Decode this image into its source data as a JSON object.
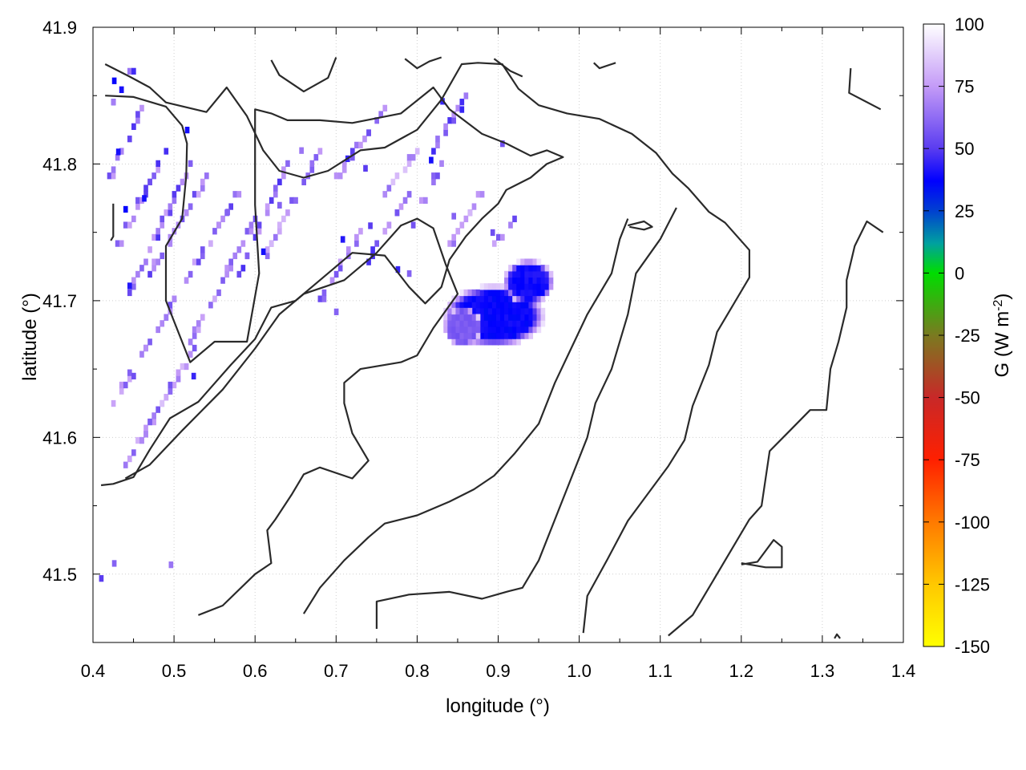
{
  "chart_data": {
    "type": "heatmap",
    "xlabel": "longitude (°)",
    "ylabel": "latitude (°)",
    "colorbar_label": "G (W m",
    "colorbar_label_sup": "-2",
    "colorbar_label_end": ")",
    "xlim": [
      0.4,
      1.4
    ],
    "ylim": [
      41.45,
      41.9
    ],
    "x_ticks": [
      0.4,
      0.5,
      0.6,
      0.7,
      0.8,
      0.9,
      1.0,
      1.1,
      1.2,
      1.3,
      1.4
    ],
    "x_tick_labels": [
      "0.4",
      "0.5",
      "0.6",
      "0.7",
      "0.8",
      "0.9",
      "1.0",
      "1.1",
      "1.2",
      "1.3",
      "1.4"
    ],
    "y_ticks": [
      41.5,
      41.6,
      41.7,
      41.8,
      41.9
    ],
    "y_tick_labels": [
      "41.5",
      "41.6",
      "41.7",
      "41.8",
      "41.9"
    ],
    "colorbar_range": [
      -150,
      100
    ],
    "colorbar_ticks": [
      100,
      75,
      50,
      25,
      0,
      -25,
      -50,
      -75,
      -100,
      -125,
      -150
    ],
    "colorbar_tick_labels": [
      "100",
      "75",
      "50",
      "25",
      "0",
      "-25",
      "-50",
      "-75",
      "-100",
      "-125",
      "-150"
    ],
    "colormap": [
      {
        "value": 100,
        "color": "#ffffff"
      },
      {
        "value": 75,
        "color": "#c49bf7"
      },
      {
        "value": 50,
        "color": "#5a3cf0"
      },
      {
        "value": 37,
        "color": "#0000ff"
      },
      {
        "value": 25,
        "color": "#0040d0"
      },
      {
        "value": 12,
        "color": "#00a0a0"
      },
      {
        "value": 0,
        "color": "#00dd00"
      },
      {
        "value": -25,
        "color": "#7a7a20"
      },
      {
        "value": -50,
        "color": "#c82828"
      },
      {
        "value": -75,
        "color": "#ff2000"
      },
      {
        "value": -100,
        "color": "#ff7a00"
      },
      {
        "value": -125,
        "color": "#ffc800"
      },
      {
        "value": -150,
        "color": "#ffff00"
      }
    ],
    "grid": true,
    "contour_color": "#2a2a2a",
    "blobs": [
      {
        "lon": 0.895,
        "lat": 41.69,
        "rlon": 0.05,
        "rlat": 0.018,
        "g": 35
      },
      {
        "lon": 0.935,
        "lat": 41.715,
        "rlon": 0.025,
        "rlat": 0.013,
        "g": 37
      },
      {
        "lon": 0.855,
        "lat": 41.683,
        "rlon": 0.02,
        "rlat": 0.012,
        "g": 55
      }
    ],
    "cells": [
      [
        0.426,
        41.861,
        38
      ],
      [
        0.431,
        41.809,
        40
      ],
      [
        0.44,
        41.767,
        38
      ],
      [
        0.445,
        41.711,
        42
      ],
      [
        0.516,
        41.825,
        40
      ],
      [
        0.463,
        41.775,
        40
      ],
      [
        0.45,
        41.645,
        55
      ],
      [
        0.524,
        41.645,
        45
      ],
      [
        0.61,
        41.736,
        40
      ],
      [
        0.708,
        41.745,
        42
      ],
      [
        0.714,
        41.804,
        45
      ],
      [
        0.736,
        41.797,
        50
      ],
      [
        0.742,
        41.755,
        50
      ],
      [
        0.776,
        41.723,
        45
      ],
      [
        0.831,
        41.846,
        45
      ],
      [
        0.817,
        41.803,
        40
      ],
      [
        0.855,
        41.84,
        45
      ],
      [
        0.893,
        41.75,
        55
      ],
      [
        0.845,
        41.762,
        60
      ],
      [
        0.7,
        41.692,
        60
      ],
      [
        0.41,
        41.497,
        50
      ],
      [
        0.426,
        41.508,
        60
      ],
      [
        0.496,
        41.507,
        65
      ],
      [
        0.566,
        41.765,
        60
      ],
      [
        0.63,
        41.77,
        60
      ],
      [
        0.79,
        41.72,
        60
      ],
      [
        0.657,
        41.81,
        65
      ],
      [
        0.905,
        41.815,
        55
      ]
    ],
    "stripes": [
      {
        "x1": 0.42,
        "y1": 41.79,
        "x2": 0.46,
        "y2": 41.84,
        "g": 60
      },
      {
        "x1": 0.43,
        "y1": 41.74,
        "x2": 0.49,
        "y2": 41.81,
        "g": 62
      },
      {
        "x1": 0.44,
        "y1": 41.7,
        "x2": 0.52,
        "y2": 41.8,
        "g": 62
      },
      {
        "x1": 0.47,
        "y1": 41.72,
        "x2": 0.54,
        "y2": 41.79,
        "g": 65
      },
      {
        "x1": 0.49,
        "y1": 41.69,
        "x2": 0.58,
        "y2": 41.78,
        "g": 65
      },
      {
        "x1": 0.52,
        "y1": 41.67,
        "x2": 0.6,
        "y2": 41.76,
        "g": 65
      },
      {
        "x1": 0.42,
        "y1": 41.62,
        "x2": 0.5,
        "y2": 41.7,
        "g": 68
      },
      {
        "x1": 0.44,
        "y1": 41.58,
        "x2": 0.52,
        "y2": 41.66,
        "g": 68
      },
      {
        "x1": 0.46,
        "y1": 41.6,
        "x2": 0.54,
        "y2": 41.68,
        "g": 70
      },
      {
        "x1": 0.42,
        "y1": 41.84,
        "x2": 0.45,
        "y2": 41.87,
        "g": 55
      },
      {
        "x1": 0.58,
        "y1": 41.72,
        "x2": 0.64,
        "y2": 41.8,
        "g": 62
      },
      {
        "x1": 0.61,
        "y1": 41.73,
        "x2": 0.68,
        "y2": 41.81,
        "g": 68
      },
      {
        "x1": 0.7,
        "y1": 41.79,
        "x2": 0.76,
        "y2": 41.84,
        "g": 65
      },
      {
        "x1": 0.74,
        "y1": 41.73,
        "x2": 0.79,
        "y2": 41.78,
        "g": 62
      },
      {
        "x1": 0.68,
        "y1": 41.7,
        "x2": 0.73,
        "y2": 41.75,
        "g": 68
      },
      {
        "x1": 0.79,
        "y1": 41.75,
        "x2": 0.83,
        "y2": 41.8,
        "g": 62
      },
      {
        "x1": 0.82,
        "y1": 41.81,
        "x2": 0.86,
        "y2": 41.85,
        "g": 58
      },
      {
        "x1": 0.84,
        "y1": 41.74,
        "x2": 0.88,
        "y2": 41.78,
        "g": 70
      },
      {
        "x1": 0.89,
        "y1": 41.74,
        "x2": 0.92,
        "y2": 41.76,
        "g": 65
      },
      {
        "x1": 0.76,
        "y1": 41.78,
        "x2": 0.8,
        "y2": 41.81,
        "g": 72
      }
    ],
    "contours": [
      [
        [
          0.415,
          41.873
        ],
        [
          0.445,
          41.864
        ],
        [
          0.47,
          41.856
        ],
        [
          0.49,
          41.845
        ],
        [
          0.54,
          41.838
        ],
        [
          0.565,
          41.856
        ],
        [
          0.59,
          41.835
        ],
        [
          0.61,
          41.81
        ],
        [
          0.63,
          41.795
        ],
        [
          0.66,
          41.79
        ],
        [
          0.69,
          41.795
        ],
        [
          0.73,
          41.81
        ],
        [
          0.76,
          41.812
        ],
        [
          0.8,
          41.825
        ],
        [
          0.83,
          41.847
        ],
        [
          0.855,
          41.873
        ],
        [
          0.875,
          41.874
        ],
        [
          0.905,
          41.873
        ],
        [
          0.925,
          41.855
        ],
        [
          0.95,
          41.843
        ],
        [
          0.985,
          41.837
        ],
        [
          1.025,
          41.833
        ],
        [
          1.065,
          41.822
        ],
        [
          1.095,
          41.808
        ],
        [
          1.115,
          41.793
        ],
        [
          1.135,
          41.782
        ],
        [
          1.16,
          41.765
        ],
        [
          1.18,
          41.757
        ],
        [
          1.21,
          41.737
        ],
        [
          1.21,
          41.717
        ],
        [
          1.19,
          41.697
        ],
        [
          1.17,
          41.677
        ],
        [
          1.16,
          41.653
        ],
        [
          1.14,
          41.623
        ],
        [
          1.13,
          41.598
        ],
        [
          1.11,
          41.579
        ],
        [
          1.08,
          41.555
        ],
        [
          1.06,
          41.539
        ],
        [
          1.035,
          41.511
        ],
        [
          1.01,
          41.484
        ],
        [
          1.005,
          41.457
        ]
      ],
      [
        [
          0.415,
          41.85
        ],
        [
          0.45,
          41.849
        ],
        [
          0.49,
          41.842
        ],
        [
          0.51,
          41.828
        ],
        [
          0.516,
          41.815
        ],
        [
          0.515,
          41.791
        ],
        [
          0.51,
          41.76
        ],
        [
          0.49,
          41.74
        ],
        [
          0.49,
          41.7
        ],
        [
          0.5,
          41.685
        ],
        [
          0.52,
          41.655
        ],
        [
          0.55,
          41.67
        ],
        [
          0.59,
          41.67
        ],
        [
          0.605,
          41.72
        ],
        [
          0.6,
          41.77
        ],
        [
          0.6,
          41.82
        ],
        [
          0.6,
          41.84
        ],
        [
          0.62,
          41.837
        ],
        [
          0.64,
          41.832
        ],
        [
          0.68,
          41.832
        ],
        [
          0.72,
          41.83
        ],
        [
          0.78,
          41.837
        ],
        [
          0.82,
          41.856
        ],
        [
          0.84,
          41.84
        ],
        [
          0.88,
          41.822
        ],
        [
          0.91,
          41.815
        ],
        [
          0.94,
          41.806
        ],
        [
          0.96,
          41.81
        ],
        [
          0.98,
          41.805
        ],
        [
          0.96,
          41.8
        ],
        [
          0.94,
          41.79
        ],
        [
          0.91,
          41.781
        ],
        [
          0.9,
          41.771
        ],
        [
          0.88,
          41.76
        ],
        [
          0.86,
          41.747
        ],
        [
          0.84,
          41.73
        ],
        [
          0.83,
          41.71
        ],
        [
          0.81,
          41.698
        ],
        [
          0.79,
          41.71
        ],
        [
          0.76,
          41.733
        ],
        [
          0.72,
          41.735
        ],
        [
          0.68,
          41.715
        ],
        [
          0.65,
          41.7
        ],
        [
          0.62,
          41.695
        ],
        [
          0.6,
          41.672
        ],
        [
          0.57,
          41.653
        ],
        [
          0.53,
          41.626
        ],
        [
          0.495,
          41.614
        ],
        [
          0.47,
          41.591
        ],
        [
          0.45,
          41.571
        ],
        [
          0.425,
          41.566
        ],
        [
          0.41,
          41.565
        ]
      ],
      [
        [
          0.425,
          41.771
        ],
        [
          0.425,
          41.747
        ],
        [
          0.422,
          41.744
        ]
      ],
      [
        [
          0.62,
          41.876
        ],
        [
          0.63,
          41.865
        ],
        [
          0.66,
          41.853
        ],
        [
          0.69,
          41.863
        ],
        [
          0.7,
          41.878
        ]
      ],
      [
        [
          0.785,
          41.877
        ],
        [
          0.8,
          41.87
        ],
        [
          0.815,
          41.875
        ],
        [
          0.83,
          41.878
        ]
      ],
      [
        [
          0.895,
          41.877
        ],
        [
          0.915,
          41.868
        ],
        [
          0.93,
          41.864
        ]
      ],
      [
        [
          1.018,
          41.874
        ],
        [
          1.025,
          41.87
        ],
        [
          1.045,
          41.874
        ]
      ],
      [
        [
          1.335,
          41.87
        ],
        [
          1.333,
          41.852
        ],
        [
          1.372,
          41.84
        ]
      ],
      [
        [
          1.062,
          41.754
        ],
        [
          1.08,
          41.752
        ],
        [
          1.09,
          41.754
        ],
        [
          1.08,
          41.758
        ],
        [
          1.06,
          41.755
        ]
      ],
      [
        [
          1.375,
          41.75
        ],
        [
          1.355,
          41.758
        ],
        [
          1.34,
          41.74
        ],
        [
          1.33,
          41.715
        ],
        [
          1.33,
          41.695
        ],
        [
          1.32,
          41.67
        ],
        [
          1.31,
          41.65
        ],
        [
          1.305,
          41.62
        ],
        [
          1.285,
          41.62
        ],
        [
          1.26,
          41.605
        ],
        [
          1.235,
          41.59
        ],
        [
          1.225,
          41.55
        ],
        [
          1.21,
          41.54
        ],
        [
          1.19,
          41.52
        ],
        [
          1.16,
          41.49
        ],
        [
          1.14,
          41.47
        ],
        [
          1.12,
          41.46
        ],
        [
          1.11,
          41.455
        ]
      ],
      [
        [
          0.53,
          41.47
        ],
        [
          0.56,
          41.477
        ],
        [
          0.6,
          41.5
        ],
        [
          0.62,
          41.508
        ],
        [
          0.615,
          41.532
        ],
        [
          0.625,
          41.54
        ],
        [
          0.645,
          41.558
        ],
        [
          0.66,
          41.573
        ],
        [
          0.68,
          41.578
        ],
        [
          0.72,
          41.57
        ],
        [
          0.74,
          41.583
        ],
        [
          0.72,
          41.603
        ],
        [
          0.71,
          41.625
        ],
        [
          0.71,
          41.64
        ],
        [
          0.73,
          41.65
        ],
        [
          0.78,
          41.655
        ],
        [
          0.8,
          41.66
        ],
        [
          0.82,
          41.68
        ],
        [
          0.85,
          41.705
        ],
        [
          0.835,
          41.727
        ],
        [
          0.82,
          41.753
        ],
        [
          0.8,
          41.76
        ],
        [
          0.78,
          41.755
        ],
        [
          0.75,
          41.735
        ],
        [
          0.71,
          41.715
        ],
        [
          0.66,
          41.705
        ],
        [
          0.63,
          41.69
        ],
        [
          0.6,
          41.665
        ],
        [
          0.56,
          41.635
        ],
        [
          0.51,
          41.605
        ],
        [
          0.47,
          41.58
        ],
        [
          0.44,
          41.57
        ]
      ],
      [
        [
          0.66,
          41.471
        ],
        [
          0.68,
          41.49
        ],
        [
          0.71,
          41.51
        ],
        [
          0.74,
          41.527
        ],
        [
          0.76,
          41.537
        ],
        [
          0.8,
          41.543
        ],
        [
          0.84,
          41.553
        ],
        [
          0.87,
          41.562
        ],
        [
          0.895,
          41.572
        ],
        [
          0.92,
          41.588
        ],
        [
          0.95,
          41.61
        ],
        [
          0.97,
          41.64
        ],
        [
          0.99,
          41.665
        ],
        [
          1.01,
          41.69
        ],
        [
          1.04,
          41.72
        ],
        [
          1.05,
          41.745
        ],
        [
          1.06,
          41.76
        ]
      ],
      [
        [
          0.75,
          41.46
        ],
        [
          0.75,
          41.48
        ],
        [
          0.79,
          41.485
        ],
        [
          0.84,
          41.487
        ],
        [
          0.88,
          41.482
        ],
        [
          0.91,
          41.487
        ],
        [
          0.93,
          41.49
        ],
        [
          0.95,
          41.51
        ],
        [
          0.97,
          41.54
        ],
        [
          0.99,
          41.57
        ],
        [
          1.01,
          41.6
        ],
        [
          1.02,
          41.625
        ],
        [
          1.04,
          41.65
        ],
        [
          1.06,
          41.69
        ],
        [
          1.07,
          41.72
        ],
        [
          1.1,
          41.745
        ],
        [
          1.12,
          41.768
        ]
      ],
      [
        [
          1.2,
          41.507
        ],
        [
          1.22,
          41.509
        ],
        [
          1.24,
          41.525
        ],
        [
          1.25,
          41.52
        ],
        [
          1.25,
          41.505
        ],
        [
          1.23,
          41.505
        ],
        [
          1.2,
          41.508
        ]
      ],
      [
        [
          1.315,
          41.453
        ],
        [
          1.318,
          41.456
        ],
        [
          1.322,
          41.453
        ]
      ]
    ]
  }
}
